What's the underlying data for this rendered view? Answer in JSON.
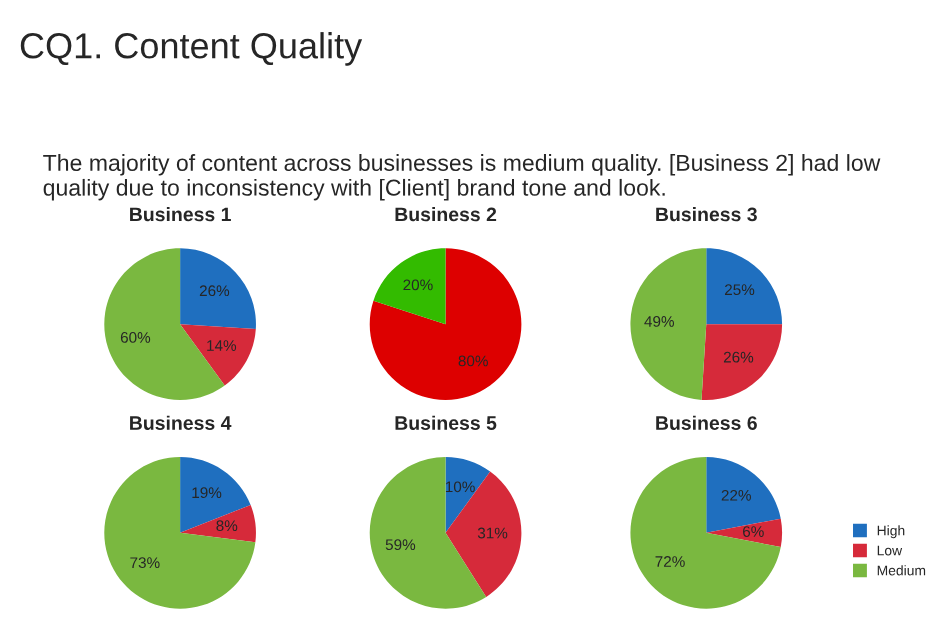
{
  "chart_data": [
    {
      "type": "pie",
      "title": "Business 1",
      "annotations": [
        "CQ1. Content Quality",
        "The majority of content across businesses is medium quality. [Business 2] had low quality due to inconsistency with [Client] brand tone and look."
      ],
      "categories": [
        "High",
        "Low",
        "Medium"
      ],
      "values": [
        26,
        14,
        60
      ],
      "value_labels": [
        "26%",
        "14%",
        "60%"
      ],
      "colors": [
        "#1f6fbf",
        "#d62a3a",
        "#7ab840"
      ],
      "legend": "bottom right"
    },
    {
      "type": "pie",
      "title": "Business 2",
      "categories": [
        null,
        null
      ],
      "values": [
        80,
        20
      ],
      "value_labels": [
        "80%",
        "20%"
      ],
      "colors": [
        "#dd0000",
        "#33bb00"
      ]
    },
    {
      "type": "pie",
      "title": "Business 3",
      "categories": [
        null,
        null,
        null
      ],
      "values": [
        25,
        26,
        49
      ],
      "value_labels": [
        "25%",
        "26%",
        "49%"
      ],
      "colors": [
        "#1f6fbf",
        "#d62a3a",
        "#7ab840"
      ]
    },
    {
      "type": "pie",
      "title": "Business 4",
      "categories": [
        null,
        null,
        null
      ],
      "values": [
        19,
        8,
        73
      ],
      "value_labels": [
        "19%",
        "8%",
        "73%"
      ],
      "colors": [
        "#1f6fbf",
        "#d62a3a",
        "#7ab840"
      ]
    },
    {
      "type": "pie",
      "title": "Business 5",
      "categories": [
        null,
        null,
        null
      ],
      "values": [
        10,
        31,
        59
      ],
      "value_labels": [
        "10%",
        "31%",
        "59%"
      ],
      "colors": [
        "#1f6fbf",
        "#d62a3a",
        "#7ab840"
      ]
    },
    {
      "type": "pie",
      "title": "Business 6",
      "categories": [
        null,
        null,
        null
      ],
      "values": [
        22,
        6,
        72
      ],
      "value_labels": [
        "22%",
        "6%",
        "72%"
      ],
      "colors": [
        "#1f6fbf",
        "#d62a3a",
        "#7ab840"
      ]
    }
  ]
}
